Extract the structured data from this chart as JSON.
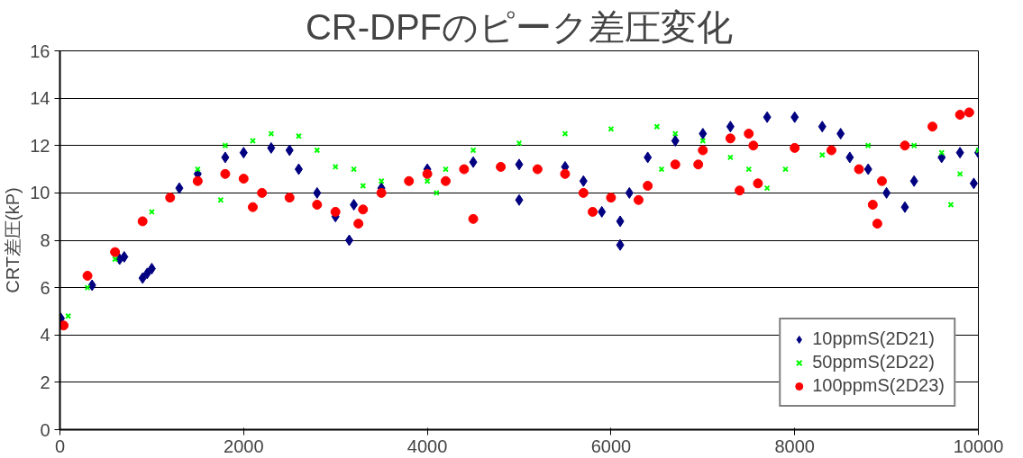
{
  "chart_data": {
    "type": "scatter",
    "title": "CR-DPFのピーク差圧変化",
    "ylabel": "CRT差圧(kP)",
    "xlim": [
      0,
      10000
    ],
    "xticks": [
      0,
      2000,
      4000,
      6000,
      8000,
      10000
    ],
    "ylim": [
      0,
      16
    ],
    "yticks": [
      0,
      2,
      4,
      6,
      8,
      10,
      12,
      14,
      16
    ],
    "grid": "y",
    "legend": "bottom right",
    "series": [
      {
        "name": "10ppmS(2D21)",
        "color": "#000080",
        "marker": "diamond",
        "x": [
          10,
          350,
          650,
          700,
          900,
          950,
          1000,
          1300,
          1500,
          1800,
          2000,
          2300,
          2500,
          2600,
          2800,
          3000,
          3150,
          3200,
          3500,
          4000,
          4500,
          5000,
          5000,
          5500,
          5700,
          5900,
          6100,
          6100,
          6200,
          6400,
          6700,
          7000,
          7300,
          7700,
          8000,
          8300,
          8500,
          8600,
          8800,
          9000,
          9200,
          9300,
          9600,
          9800,
          9950,
          10000
        ],
        "values": [
          4.7,
          6.1,
          7.2,
          7.3,
          6.4,
          6.6,
          6.8,
          10.2,
          10.8,
          11.5,
          11.7,
          11.9,
          11.8,
          11.0,
          10.0,
          9.0,
          8.0,
          9.5,
          10.2,
          11.0,
          11.3,
          11.2,
          9.7,
          11.1,
          10.5,
          9.2,
          8.8,
          7.8,
          10.0,
          11.5,
          12.2,
          12.5,
          12.8,
          13.2,
          13.2,
          12.8,
          12.5,
          11.5,
          11.0,
          10.0,
          9.4,
          10.5,
          11.5,
          11.7,
          10.4,
          11.7
        ]
      },
      {
        "name": "50ppmS(2D22)",
        "color": "#00ff00",
        "marker": "cross",
        "x": [
          90,
          300,
          600,
          1000,
          1500,
          1750,
          1800,
          2100,
          2300,
          2600,
          2800,
          3000,
          3200,
          3300,
          3500,
          4000,
          4100,
          4200,
          4500,
          5000,
          5500,
          6000,
          6500,
          6550,
          6700,
          7000,
          7300,
          7500,
          7700,
          7900,
          8300,
          8800,
          9300,
          9600,
          9700,
          9800,
          10000
        ],
        "values": [
          4.8,
          6.0,
          7.2,
          9.2,
          11.0,
          9.7,
          12.0,
          12.2,
          12.5,
          12.4,
          11.8,
          11.1,
          11.0,
          10.3,
          10.5,
          10.5,
          10.0,
          11.0,
          11.8,
          12.1,
          12.5,
          12.7,
          12.8,
          11.0,
          12.5,
          12.2,
          11.5,
          11.0,
          10.2,
          11.0,
          11.6,
          12.0,
          12.0,
          11.7,
          9.5,
          10.8,
          11.8
        ]
      },
      {
        "name": "100ppmS(2D23)",
        "color": "#ff0000",
        "marker": "circle",
        "x": [
          40,
          300,
          600,
          900,
          1200,
          1500,
          1800,
          2000,
          2100,
          2200,
          2500,
          2800,
          3000,
          3250,
          3300,
          3500,
          3800,
          4000,
          4200,
          4400,
          4500,
          4800,
          5200,
          5500,
          5700,
          5800,
          6000,
          6300,
          6400,
          6700,
          6950,
          7000,
          7300,
          7400,
          7500,
          7550,
          7600,
          8000,
          8400,
          8700,
          8850,
          8900,
          8950,
          9200,
          9500,
          9800,
          9900
        ],
        "values": [
          4.4,
          6.5,
          7.5,
          8.8,
          9.8,
          10.5,
          10.8,
          10.6,
          9.4,
          10.0,
          9.8,
          9.5,
          9.2,
          8.7,
          9.3,
          10.0,
          10.5,
          10.8,
          10.5,
          11.0,
          8.9,
          11.1,
          11.0,
          10.8,
          10.0,
          9.2,
          9.8,
          9.7,
          10.3,
          11.2,
          11.2,
          11.8,
          12.3,
          10.1,
          12.5,
          12.0,
          10.4,
          11.9,
          11.8,
          11.0,
          9.5,
          8.7,
          10.5,
          12.0,
          12.8,
          13.3,
          13.4
        ]
      }
    ]
  }
}
